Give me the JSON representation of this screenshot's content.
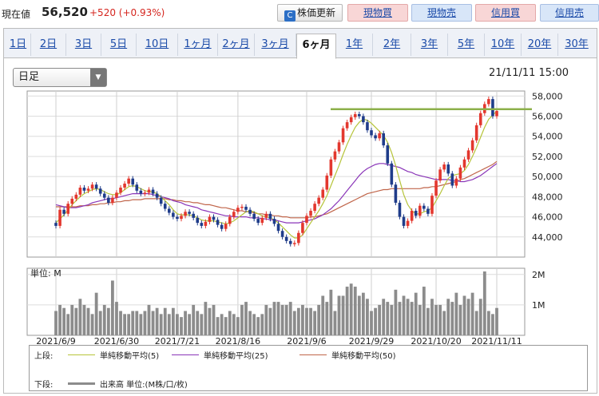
{
  "header": {
    "price_label": "現在値",
    "price_value": "56,520",
    "price_change": "+520 (+0.93%)",
    "refresh_label": "株価更新",
    "buy_label": "現物買",
    "sell_label": "現物売",
    "margin_buy_label": "信用買",
    "margin_sell_label": "信用売"
  },
  "tabs": [
    "1日",
    "2日",
    "3日",
    "5日",
    "10日",
    "1ヶ月",
    "2ヶ月",
    "3ヶ月",
    "6ヶ月",
    "1年",
    "2年",
    "3年",
    "5年",
    "10年",
    "20年",
    "30年"
  ],
  "active_tab": "6ヶ月",
  "period_select": {
    "value": "日足"
  },
  "as_of": "21/11/11 15:00",
  "colors": {
    "up": "#e3372e",
    "down": "#1f3c8a",
    "ma5": "#b6c43a",
    "ma25": "#8a35b8",
    "ma50": "#c0654a",
    "volume": "#8c8c8c",
    "resistance": "#8cb04a"
  },
  "chart_data": [
    {
      "type": "candlestick",
      "x_ticks": [
        "2021/6/9",
        "2021/6/30",
        "2021/7/21",
        "2021/8/16",
        "2021/9/6",
        "2021/9/29",
        "2021/10/20",
        "2021/11/11"
      ],
      "y_ticks": [
        44000,
        46000,
        48000,
        50000,
        52000,
        54000,
        56000,
        58000
      ],
      "ylim": [
        42000,
        58500
      ],
      "resistance_level": 56700,
      "close": [
        45100,
        46700,
        46300,
        47300,
        47800,
        48200,
        48900,
        48600,
        48800,
        49200,
        48800,
        48300,
        47900,
        47400,
        47900,
        48400,
        48900,
        49300,
        49800,
        49200,
        48600,
        48300,
        48400,
        48700,
        48300,
        47900,
        47300,
        46800,
        46400,
        46000,
        45800,
        46100,
        46500,
        46300,
        45900,
        45400,
        45100,
        45500,
        46000,
        45700,
        45200,
        44800,
        45300,
        46000,
        46500,
        46900,
        47000,
        46700,
        46300,
        45800,
        45400,
        45900,
        46300,
        45800,
        45300,
        44600,
        44000,
        43600,
        43300,
        43400,
        44400,
        45400,
        46100,
        46600,
        47300,
        47900,
        48700,
        50100,
        51700,
        52500,
        53400,
        54800,
        55400,
        55900,
        56200,
        56000,
        55400,
        54600,
        54100,
        53800,
        54300,
        53100,
        51300,
        49200,
        47400,
        46000,
        45100,
        45600,
        46600,
        46100,
        47100,
        46800,
        46300,
        48100,
        49600,
        50700,
        51200,
        50300,
        49100,
        49800,
        50900,
        51700,
        52600,
        53600,
        55100,
        56300,
        57200,
        57700,
        56000,
        56520
      ],
      "ma5": [
        45400,
        45800,
        46200,
        46700,
        47200,
        47600,
        48000,
        48300,
        48500,
        48700,
        48800,
        48700,
        48500,
        48300,
        48200,
        48200,
        48400,
        48700,
        49000,
        49100,
        49000,
        48800,
        48600,
        48500,
        48500,
        48300,
        48000,
        47600,
        47200,
        46700,
        46300,
        46200,
        46200,
        46200,
        46100,
        45900,
        45700,
        45600,
        45600,
        45600,
        45500,
        45400,
        45300,
        45400,
        45600,
        45900,
        46200,
        46500,
        46600,
        46500,
        46300,
        46100,
        46000,
        45900,
        45700,
        45400,
        45000,
        44600,
        44200,
        43900,
        43900,
        44200,
        44800,
        45400,
        46000,
        46600,
        47300,
        48100,
        49100,
        50100,
        51100,
        52200,
        53200,
        54100,
        54900,
        55400,
        55700,
        55600,
        55300,
        54900,
        54500,
        54100,
        53400,
        52400,
        51100,
        49600,
        48200,
        47200,
        46600,
        46300,
        46300,
        46500,
        46600,
        46900,
        47600,
        48300,
        49100,
        49800,
        50100,
        50200,
        50300,
        50600,
        51200,
        52000,
        52900,
        53900,
        54900,
        55700,
        56100,
        56500
      ],
      "ma25": [
        47200,
        47100,
        47000,
        46900,
        46900,
        46900,
        47000,
        47100,
        47200,
        47400,
        47500,
        47600,
        47700,
        47800,
        47800,
        47900,
        48000,
        48100,
        48200,
        48300,
        48300,
        48300,
        48300,
        48300,
        48200,
        48100,
        48000,
        47900,
        47800,
        47600,
        47500,
        47400,
        47200,
        47100,
        47000,
        46900,
        46700,
        46600,
        46500,
        46400,
        46300,
        46200,
        46100,
        46100,
        46000,
        46000,
        46000,
        46000,
        45900,
        45900,
        45900,
        45800,
        45800,
        45700,
        45700,
        45600,
        45500,
        45400,
        45400,
        45400,
        45400,
        45500,
        45600,
        45700,
        45800,
        46000,
        46200,
        46500,
        46800,
        47200,
        47600,
        48100,
        48600,
        49100,
        49600,
        50100,
        50500,
        50800,
        51000,
        51200,
        51300,
        51300,
        51200,
        51100,
        51000,
        50900,
        50700,
        50500,
        50400,
        50200,
        50100,
        50000,
        49900,
        49800,
        49700,
        49700,
        49700,
        49700,
        49600,
        49600,
        49500,
        49500,
        49600,
        49700,
        49900,
        50100,
        50400,
        50700,
        51000,
        51300
      ],
      "ma50": [
        47000,
        47000,
        47000,
        47000,
        47000,
        47000,
        47100,
        47100,
        47100,
        47200,
        47200,
        47300,
        47300,
        47400,
        47400,
        47500,
        47500,
        47600,
        47600,
        47700,
        47700,
        47700,
        47800,
        47800,
        47800,
        47800,
        47800,
        47800,
        47700,
        47700,
        47600,
        47600,
        47500,
        47500,
        47400,
        47400,
        47300,
        47200,
        47200,
        47100,
        47000,
        46900,
        46900,
        46800,
        46700,
        46600,
        46600,
        46500,
        46500,
        46400,
        46300,
        46300,
        46200,
        46200,
        46100,
        46100,
        46000,
        46000,
        45900,
        45900,
        45900,
        45900,
        45900,
        46000,
        46000,
        46100,
        46200,
        46300,
        46500,
        46700,
        46900,
        47100,
        47300,
        47500,
        47700,
        47900,
        48100,
        48300,
        48400,
        48500,
        48600,
        48700,
        48700,
        48800,
        48800,
        48800,
        48800,
        48800,
        48800,
        48800,
        48800,
        48900,
        48900,
        49000,
        49000,
        49100,
        49200,
        49300,
        49400,
        49500,
        49700,
        49800,
        50000,
        50200,
        50400,
        50600,
        50800,
        51000,
        51200,
        51500
      ],
      "volume_y_ticks": [
        "1M",
        "2M"
      ],
      "volume_unit_label": "単位: M",
      "volume": [
        0.8,
        1.0,
        0.9,
        0.7,
        1.0,
        0.9,
        1.2,
        1.0,
        0.9,
        0.7,
        1.4,
        0.8,
        1.0,
        0.9,
        1.8,
        1.1,
        0.8,
        0.7,
        0.7,
        0.8,
        0.8,
        0.7,
        0.8,
        1.0,
        0.8,
        0.9,
        0.7,
        0.9,
        0.7,
        0.9,
        0.7,
        0.6,
        0.8,
        0.7,
        1.0,
        0.8,
        0.7,
        1.1,
        0.9,
        1.0,
        0.6,
        0.7,
        0.6,
        0.8,
        0.7,
        0.6,
        1.0,
        1.1,
        0.8,
        0.7,
        0.6,
        0.7,
        1.0,
        0.9,
        1.1,
        1.1,
        1.0,
        1.0,
        1.1,
        0.8,
        0.9,
        1.0,
        0.9,
        0.9,
        0.8,
        1.0,
        1.3,
        1.1,
        1.5,
        0.8,
        1.3,
        1.3,
        1.6,
        1.7,
        1.6,
        1.3,
        1.4,
        1.2,
        0.8,
        0.9,
        1.0,
        1.2,
        1.1,
        1.0,
        1.5,
        1.1,
        1.3,
        1.2,
        1.1,
        1.4,
        1.0,
        1.6,
        0.9,
        1.2,
        1.0,
        1.0,
        0.8,
        1.2,
        1.1,
        1.4,
        1.0,
        1.3,
        1.2,
        1.4,
        0.8,
        1.2,
        2.1,
        0.8,
        0.7,
        0.9
      ],
      "legend": {
        "upper_label": "上段:",
        "lower_label": "下段:",
        "ma5_label": "単純移動平均(5)",
        "ma25_label": "単純移動平均(25)",
        "ma50_label": "単純移動平均(50)",
        "volume_label": "出来高 単位:(M株/口/枚)"
      }
    }
  ]
}
